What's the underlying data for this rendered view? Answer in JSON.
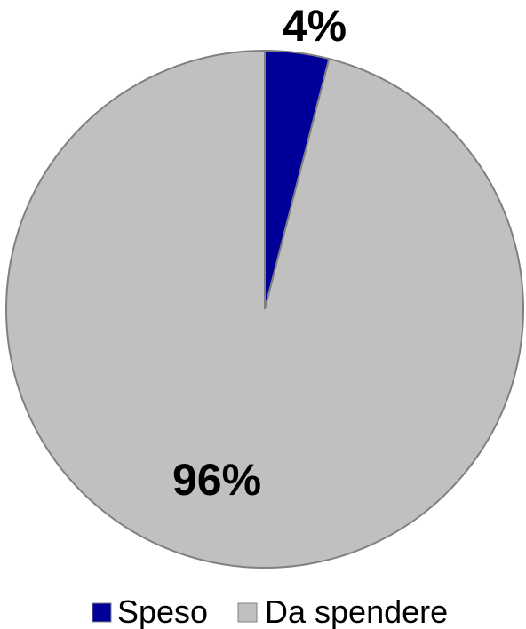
{
  "chart_data": {
    "type": "pie",
    "title": "",
    "start_angle_deg": 0,
    "direction": "clockwise",
    "legend_position": "bottom",
    "series": [
      {
        "name": "Speso",
        "value": 4,
        "label": "4%",
        "color": "#000099"
      },
      {
        "name": "Da spendere",
        "value": 96,
        "label": "96%",
        "color": "#C0C0C0"
      }
    ],
    "edge_color": "#808080"
  }
}
